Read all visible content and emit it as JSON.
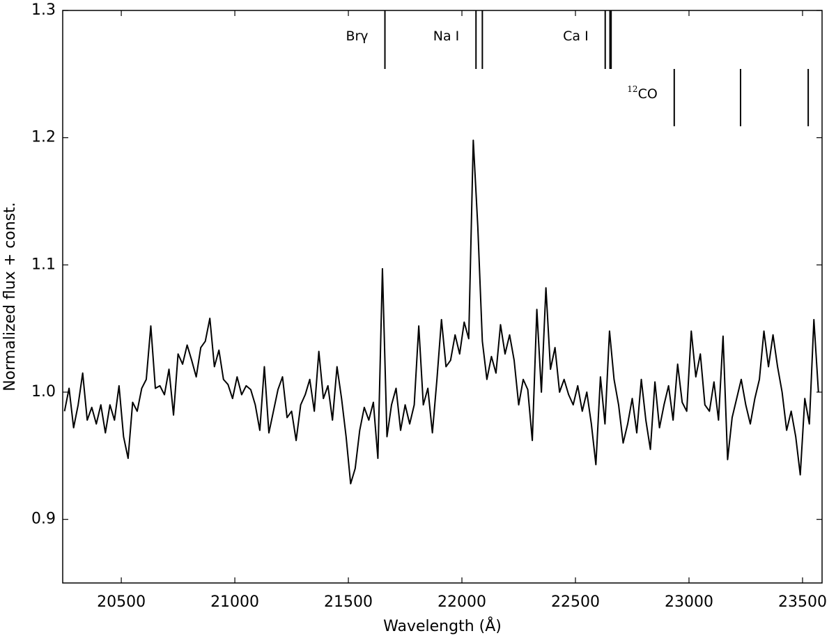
{
  "chart_data": {
    "type": "line",
    "xlabel": "Wavelength (Å)",
    "ylabel": "Normalized flux + const.",
    "xlim": [
      20242,
      23586
    ],
    "ylim": [
      0.85,
      1.3
    ],
    "xticks": [
      20500,
      21000,
      21500,
      22000,
      22500,
      23000,
      23500
    ],
    "yticks": [
      0.9,
      {
        "value": 1,
        "label": "1.0"
      },
      1.1,
      1.2,
      1.3
    ],
    "series": [
      {
        "color": "#000000",
        "x": [
          20250,
          20270,
          20290,
          20310,
          20330,
          20350,
          20370,
          20390,
          20410,
          20430,
          20450,
          20470,
          20490,
          20510,
          20530,
          20550,
          20570,
          20590,
          20610,
          20630,
          20650,
          20670,
          20690,
          20710,
          20730,
          20750,
          20770,
          20790,
          20810,
          20830,
          20850,
          20870,
          20890,
          20910,
          20930,
          20950,
          20970,
          20990,
          21010,
          21030,
          21050,
          21070,
          21090,
          21110,
          21130,
          21150,
          21170,
          21190,
          21210,
          21230,
          21250,
          21270,
          21290,
          21310,
          21330,
          21350,
          21370,
          21390,
          21410,
          21430,
          21450,
          21470,
          21490,
          21510,
          21530,
          21550,
          21570,
          21590,
          21610,
          21630,
          21650,
          21670,
          21690,
          21710,
          21730,
          21750,
          21770,
          21790,
          21810,
          21830,
          21850,
          21870,
          21890,
          21910,
          21930,
          21950,
          21970,
          21990,
          22010,
          22030,
          22050,
          22070,
          22090,
          22110,
          22130,
          22150,
          22170,
          22190,
          22210,
          22230,
          22250,
          22270,
          22290,
          22310,
          22330,
          22350,
          22370,
          22390,
          22410,
          22430,
          22450,
          22470,
          22490,
          22510,
          22530,
          22550,
          22570,
          22590,
          22610,
          22630,
          22650,
          22670,
          22690,
          22710,
          22730,
          22750,
          22770,
          22790,
          22810,
          22830,
          22850,
          22870,
          22890,
          22910,
          22930,
          22950,
          22970,
          22990,
          23010,
          23030,
          23050,
          23070,
          23090,
          23110,
          23130,
          23150,
          23170,
          23190,
          23210,
          23230,
          23250,
          23270,
          23290,
          23310,
          23330,
          23350,
          23370,
          23390,
          23410,
          23430,
          23450,
          23470,
          23490,
          23510,
          23530,
          23550,
          23570
        ],
        "values": [
          0.985,
          1.003,
          0.972,
          0.99,
          1.015,
          0.978,
          0.988,
          0.975,
          0.99,
          0.968,
          0.99,
          0.978,
          1.005,
          0.965,
          0.948,
          0.992,
          0.985,
          1.003,
          1.01,
          1.052,
          1.003,
          1.005,
          0.998,
          1.018,
          0.982,
          1.03,
          1.022,
          1.037,
          1.025,
          1.012,
          1.035,
          1.04,
          1.058,
          1.02,
          1.033,
          1.01,
          1.006,
          0.995,
          1.012,
          0.998,
          1.005,
          1.002,
          0.99,
          0.97,
          1.02,
          0.968,
          0.985,
          1.002,
          1.012,
          0.98,
          0.985,
          0.962,
          0.99,
          0.998,
          1.01,
          0.985,
          1.032,
          0.995,
          1.005,
          0.978,
          1.02,
          0.995,
          0.965,
          0.928,
          0.94,
          0.97,
          0.988,
          0.978,
          0.992,
          0.948,
          1.097,
          0.965,
          0.99,
          1.003,
          0.97,
          0.99,
          0.975,
          0.99,
          1.052,
          0.99,
          1.003,
          0.968,
          1.01,
          1.057,
          1.02,
          1.025,
          1.045,
          1.03,
          1.055,
          1.042,
          1.198,
          1.13,
          1.04,
          1.01,
          1.028,
          1.015,
          1.053,
          1.03,
          1.045,
          1.025,
          0.99,
          1.01,
          1.002,
          0.962,
          1.065,
          1.0,
          1.082,
          1.018,
          1.035,
          1.0,
          1.01,
          0.998,
          0.99,
          1.005,
          0.985,
          1.0,
          0.975,
          0.943,
          1.012,
          0.975,
          1.048,
          1.01,
          0.99,
          0.96,
          0.975,
          0.995,
          0.968,
          1.01,
          0.978,
          0.955,
          1.008,
          0.972,
          0.99,
          1.005,
          0.978,
          1.022,
          0.992,
          0.985,
          1.048,
          1.012,
          1.03,
          0.99,
          0.985,
          1.008,
          0.978,
          1.044,
          0.947,
          0.98,
          0.995,
          1.01,
          0.99,
          0.975,
          0.995,
          1.01,
          1.048,
          1.02,
          1.045,
          1.02,
          1.0,
          0.97,
          0.985,
          0.965,
          0.935,
          0.995,
          0.975,
          1.057,
          1.0
        ]
      }
    ],
    "line_markers": [
      {
        "label": "Brγ",
        "positions": [
          21661
        ],
        "ymin": 1.254,
        "ymax": 1.3
      },
      {
        "label": "Na I",
        "positions": [
          22062,
          22090
        ],
        "ymin": 1.254,
        "ymax": 1.3
      },
      {
        "label": "Ca I",
        "positions": [
          22631,
          22652,
          22657
        ],
        "ymin": 1.254,
        "ymax": 1.3
      },
      {
        "superscript": "12",
        "label": "CO",
        "positions": [
          22935,
          23227,
          23525
        ],
        "ymin": 1.209,
        "ymax": 1.254
      }
    ]
  }
}
